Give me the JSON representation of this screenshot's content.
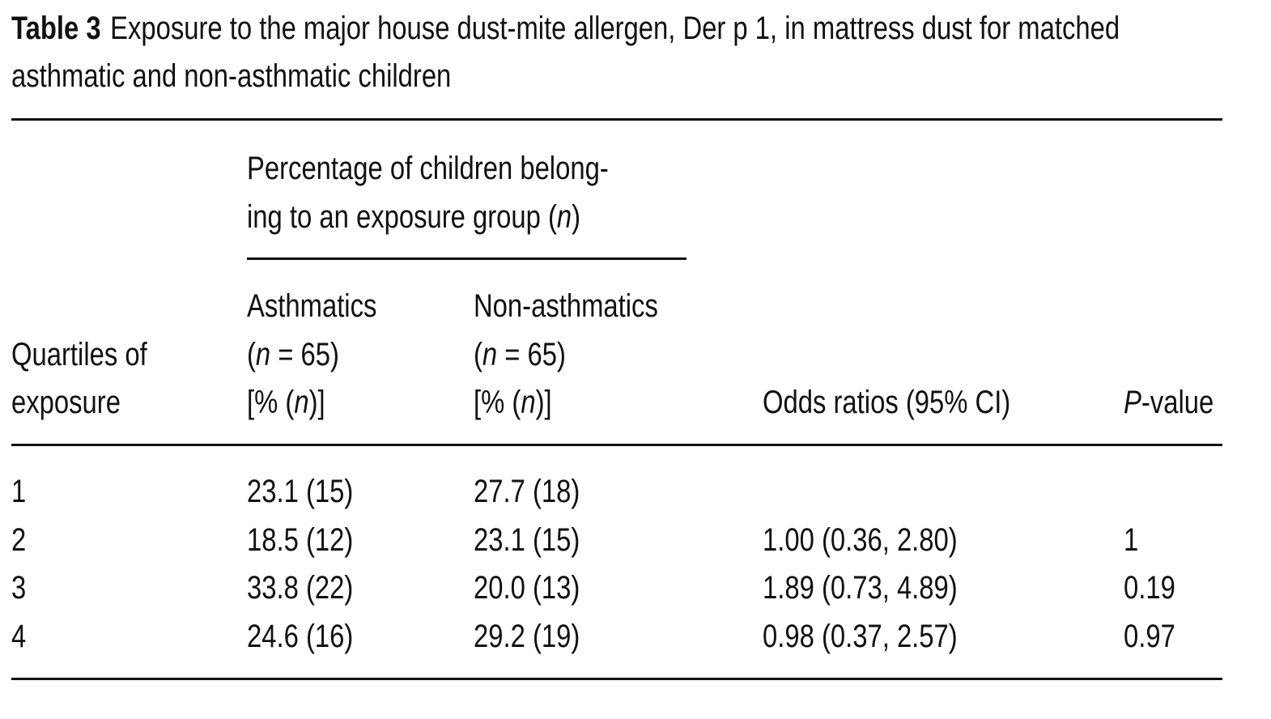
{
  "caption": {
    "label": "Table 3",
    "text": "Exposure to the major house dust-mite allergen, Der p 1, in mattress dust for matched asthmatic and non-asthmatic children"
  },
  "group_header": {
    "lines": [
      [
        {
          "text": "Percentage of children belong-"
        }
      ],
      [
        {
          "text": "ing to an exposure group ("
        },
        {
          "text": "n",
          "italic": true
        },
        {
          "text": ")"
        }
      ]
    ]
  },
  "columns": [
    {
      "lines": [
        [
          {
            "text": "Quartiles of"
          }
        ],
        [
          {
            "text": "exposure"
          }
        ]
      ]
    },
    {
      "lines": [
        [
          {
            "text": "Asthmatics"
          }
        ],
        [
          {
            "text": "("
          },
          {
            "text": "n",
            "italic": true
          },
          {
            "text": " = 65)"
          }
        ],
        [
          {
            "text": "[% ("
          },
          {
            "text": "n",
            "italic": true
          },
          {
            "text": ")]"
          }
        ]
      ]
    },
    {
      "lines": [
        [
          {
            "text": "Non-asthmatics"
          }
        ],
        [
          {
            "text": "("
          },
          {
            "text": "n",
            "italic": true
          },
          {
            "text": " = 65)"
          }
        ],
        [
          {
            "text": "[% ("
          },
          {
            "text": "n",
            "italic": true
          },
          {
            "text": ")]"
          }
        ]
      ]
    },
    {
      "lines": [
        [
          {
            "text": "Odds ratios (95% CI)"
          }
        ]
      ]
    },
    {
      "lines": [
        [
          {
            "text": "P",
            "italic": true
          },
          {
            "text": "-value"
          }
        ]
      ]
    }
  ],
  "table": {
    "rows": [
      [
        "1",
        "23.1 (15)",
        "27.7 (18)",
        null,
        null
      ],
      [
        "2",
        "18.5 (12)",
        "23.1 (15)",
        "1.00 (0.36, 2.80)",
        "1"
      ],
      [
        "3",
        "33.8 (22)",
        "20.0 (13)",
        "1.89 (0.73, 4.89)",
        "0.19"
      ],
      [
        "4",
        "24.6 (16)",
        "29.2 (19)",
        "0.98 (0.37, 2.57)",
        "0.97"
      ]
    ]
  }
}
